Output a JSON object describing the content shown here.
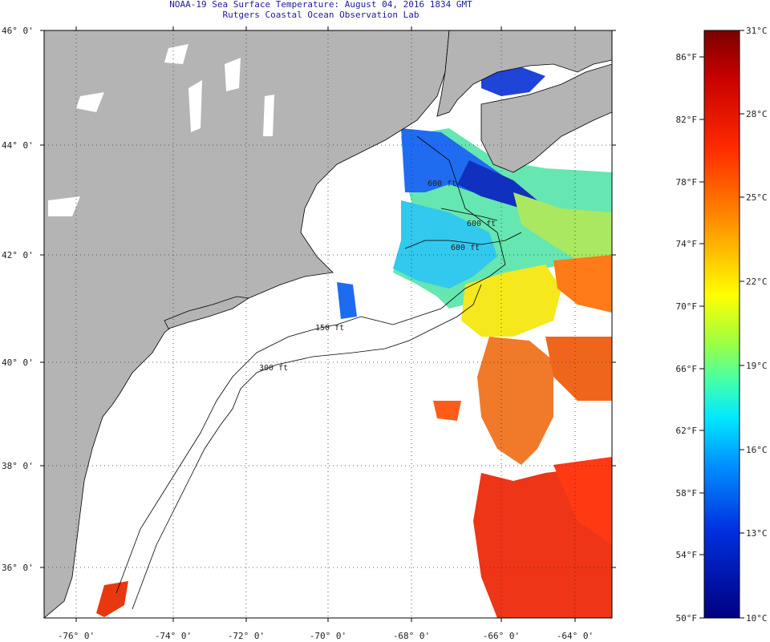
{
  "header": {
    "title_line1": "NOAA-19 Sea Surface Temperature:  August 04, 2016 1834 GMT",
    "title_line2": "Rutgers Coastal Ocean Observation Lab"
  },
  "map": {
    "lat_labels": [
      "46° 0'",
      "44° 0'",
      "42° 0'",
      "40° 0'",
      "38° 0'",
      "36° 0'"
    ],
    "lon_labels": [
      "-76° 0'",
      "-74° 0'",
      "-72° 0'",
      "-70° 0'",
      "-68° 0'",
      "-66° 0'",
      "-64° 0'"
    ],
    "contours": [
      "600 ft",
      "600 ft",
      "600 ft",
      "150 ft",
      "300 ft"
    ],
    "colors": {
      "land": "#b4b4b4",
      "ocean": "#ffffff",
      "coast": "#000000"
    }
  },
  "colorbar": {
    "celsius": [
      "31°C",
      "28°C",
      "25°C",
      "22°C",
      "19°C",
      "16°C",
      "13°C",
      "10°C"
    ],
    "fahrenheit": [
      "86°F",
      "82°F",
      "78°F",
      "74°F",
      "70°F",
      "66°F",
      "62°F",
      "58°F",
      "54°F",
      "50°F"
    ]
  }
}
